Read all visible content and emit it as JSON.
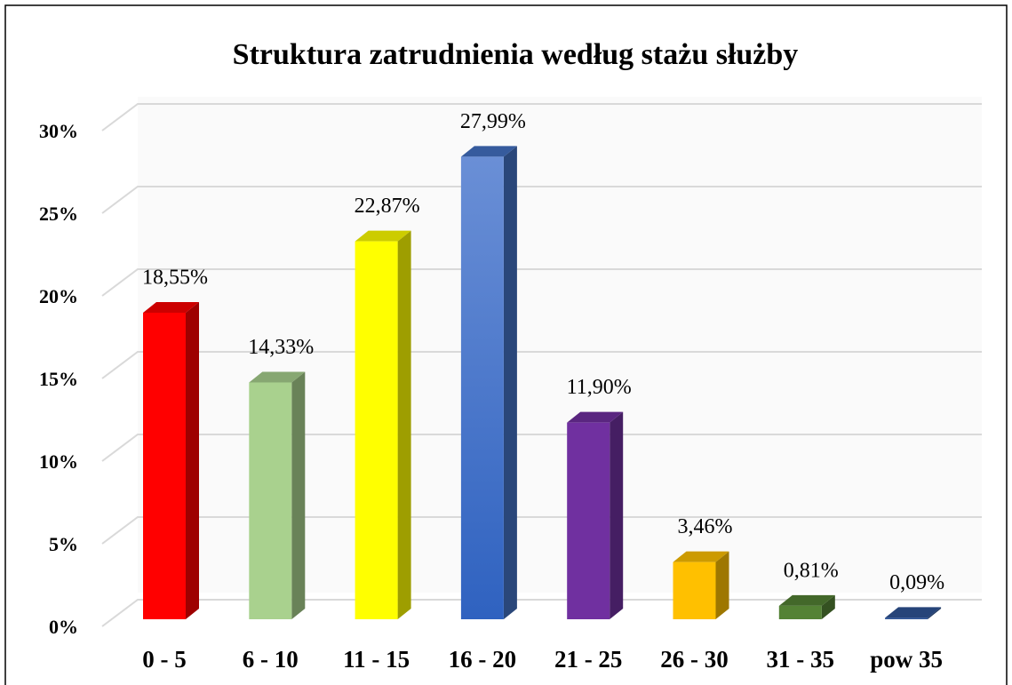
{
  "chart_data": {
    "type": "bar3d",
    "title": "Struktura zatrudnienia według stażu służby",
    "categories": [
      "0 - 5",
      "6 - 10",
      "11 - 15",
      "16 - 20",
      "21 - 25",
      "26 - 30",
      "31 - 35",
      "pow 35"
    ],
    "values": [
      18.55,
      14.33,
      22.87,
      27.99,
      11.9,
      3.46,
      0.81,
      0.09
    ],
    "value_labels": [
      "18,55%",
      "14,33%",
      "22,87%",
      "27,99%",
      "11,90%",
      "3,46%",
      "0,81%",
      "0,09%"
    ],
    "colors": [
      "#ff0000",
      "#a9d18e",
      "#ffff00",
      "#4472c4",
      "#7030a0",
      "#ffc000",
      "#548235",
      "#2f5597"
    ],
    "ylim": [
      0,
      30
    ],
    "yticks": [
      {
        "value": 0,
        "label": "0%"
      },
      {
        "value": 5,
        "label": "5%"
      },
      {
        "value": 10,
        "label": "10%"
      },
      {
        "value": 15,
        "label": "15%"
      },
      {
        "value": 20,
        "label": "20%"
      },
      {
        "value": 25,
        "label": "25%"
      },
      {
        "value": 30,
        "label": "30%"
      }
    ],
    "grid": true
  }
}
